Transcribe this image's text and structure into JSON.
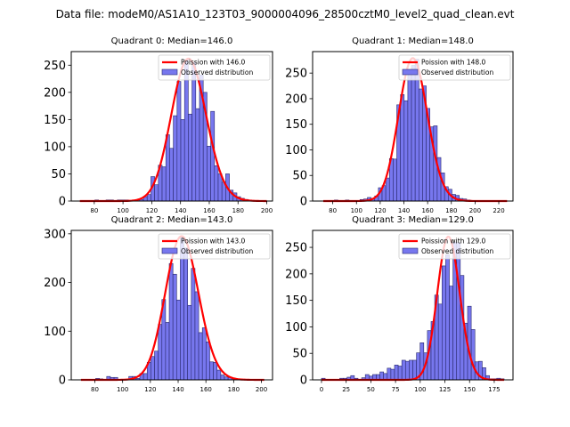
{
  "suptitle": "Data file: modeM0/AS1A10_123T03_9000004096_28500cztM0_level2_quad_clean.evt",
  "chart_data": [
    {
      "type": "bar",
      "title": "Quadrant 0: Median=146.0",
      "xlim": [
        64,
        204
      ],
      "ylim": [
        0,
        275
      ],
      "xticks": [
        80,
        100,
        120,
        140,
        160,
        180,
        200
      ],
      "yticks": [
        0,
        50,
        100,
        150,
        200,
        250
      ],
      "bin_width": 2.6,
      "bins": [
        [
          70,
          0
        ],
        [
          72.6,
          0
        ],
        [
          75.2,
          0
        ],
        [
          77.8,
          0
        ],
        [
          80.4,
          2
        ],
        [
          83,
          1
        ],
        [
          85.6,
          0
        ],
        [
          88.2,
          2
        ],
        [
          90.8,
          2
        ],
        [
          93.4,
          1
        ],
        [
          96,
          2
        ],
        [
          98.6,
          2
        ],
        [
          101.2,
          2
        ],
        [
          103.8,
          1
        ],
        [
          106.4,
          1
        ],
        [
          109,
          2
        ],
        [
          111.6,
          3
        ],
        [
          114.2,
          8
        ],
        [
          116.8,
          12
        ],
        [
          119.4,
          45
        ],
        [
          122,
          30
        ],
        [
          124.6,
          66
        ],
        [
          127.2,
          63
        ],
        [
          129.8,
          122
        ],
        [
          132.4,
          97
        ],
        [
          135,
          157
        ],
        [
          137.6,
          220
        ],
        [
          140.2,
          150
        ],
        [
          142.8,
          260
        ],
        [
          145.4,
          160
        ],
        [
          148,
          255
        ],
        [
          150.6,
          170
        ],
        [
          153.2,
          232
        ],
        [
          155.8,
          200
        ],
        [
          158.4,
          101
        ],
        [
          161,
          165
        ],
        [
          163.6,
          65
        ],
        [
          166.2,
          50
        ],
        [
          168.8,
          35
        ],
        [
          171.4,
          50
        ],
        [
          174,
          20
        ],
        [
          176.6,
          15
        ],
        [
          179.2,
          8
        ],
        [
          181.8,
          5
        ],
        [
          184.4,
          3
        ],
        [
          187,
          2
        ],
        [
          189.6,
          1
        ],
        [
          192.2,
          1
        ],
        [
          194.8,
          0
        ],
        [
          197.4,
          0
        ]
      ],
      "poisson_mean": 146.0,
      "poisson_peak": 262,
      "legend": [
        "Poission with 146.0",
        "Observed distribution"
      ],
      "legend_position": "upper-right"
    },
    {
      "type": "bar",
      "title": "Quadrant 1: Median=148.0",
      "xlim": [
        63,
        232
      ],
      "ylim": [
        0,
        292
      ],
      "xticks": [
        80,
        100,
        120,
        140,
        160,
        180,
        200,
        220
      ],
      "yticks": [
        0,
        50,
        100,
        150,
        200,
        250
      ],
      "bin_width": 3.1,
      "bins": [
        [
          72,
          0
        ],
        [
          75.1,
          1
        ],
        [
          78.2,
          0
        ],
        [
          81.3,
          2
        ],
        [
          84.4,
          1
        ],
        [
          87.5,
          0
        ],
        [
          90.6,
          2
        ],
        [
          93.7,
          1
        ],
        [
          96.8,
          0
        ],
        [
          99.9,
          1
        ],
        [
          103,
          3
        ],
        [
          106.1,
          4
        ],
        [
          109.2,
          7
        ],
        [
          112.3,
          5
        ],
        [
          115.4,
          10
        ],
        [
          118.5,
          26
        ],
        [
          121.6,
          30
        ],
        [
          124.7,
          45
        ],
        [
          127.8,
          83
        ],
        [
          130.9,
          82
        ],
        [
          134,
          188
        ],
        [
          137.1,
          208
        ],
        [
          140.2,
          196
        ],
        [
          143.3,
          248
        ],
        [
          146.4,
          265
        ],
        [
          149.5,
          277
        ],
        [
          152.6,
          219
        ],
        [
          155.7,
          225
        ],
        [
          158.8,
          181
        ],
        [
          161.9,
          145
        ],
        [
          165,
          147
        ],
        [
          168.1,
          85
        ],
        [
          171.2,
          55
        ],
        [
          174.3,
          28
        ],
        [
          177.4,
          23
        ],
        [
          180.5,
          13
        ],
        [
          183.6,
          11
        ],
        [
          186.7,
          5
        ],
        [
          189.8,
          4
        ],
        [
          192.9,
          2
        ],
        [
          196,
          1
        ],
        [
          199.1,
          1
        ],
        [
          202.2,
          0
        ],
        [
          205.3,
          0
        ],
        [
          208.4,
          0
        ],
        [
          211.5,
          0
        ],
        [
          214.6,
          0
        ],
        [
          217.7,
          0
        ],
        [
          220.8,
          1
        ],
        [
          223.9,
          0
        ]
      ],
      "poisson_mean": 148.0,
      "poisson_peak": 279,
      "legend": [
        "Poission with 148.0",
        "Observed distribution"
      ],
      "legend_position": "upper-right"
    },
    {
      "type": "bar",
      "title": "Quadrant 2: Median=143.0",
      "xlim": [
        63,
        208
      ],
      "ylim": [
        0,
        307
      ],
      "xticks": [
        80,
        100,
        120,
        140,
        160,
        180,
        200
      ],
      "yticks": [
        0,
        100,
        200,
        300
      ],
      "bin_width": 2.65,
      "bins": [
        [
          70,
          0
        ],
        [
          72.65,
          0
        ],
        [
          75.3,
          0
        ],
        [
          77.95,
          0
        ],
        [
          80.6,
          3
        ],
        [
          83.25,
          2
        ],
        [
          85.9,
          0
        ],
        [
          88.55,
          7
        ],
        [
          91.2,
          5
        ],
        [
          93.85,
          5
        ],
        [
          96.5,
          0
        ],
        [
          99.15,
          0
        ],
        [
          101.8,
          0
        ],
        [
          104.45,
          7
        ],
        [
          107.1,
          7
        ],
        [
          109.75,
          3
        ],
        [
          112.4,
          13
        ],
        [
          115.05,
          13
        ],
        [
          117.7,
          36
        ],
        [
          120.35,
          48
        ],
        [
          123,
          59
        ],
        [
          125.65,
          114
        ],
        [
          128.3,
          165
        ],
        [
          130.95,
          118
        ],
        [
          133.6,
          239
        ],
        [
          136.25,
          217
        ],
        [
          138.9,
          164
        ],
        [
          141.55,
          293
        ],
        [
          144.2,
          271
        ],
        [
          146.85,
          153
        ],
        [
          149.5,
          229
        ],
        [
          152.15,
          181
        ],
        [
          154.8,
          97
        ],
        [
          157.45,
          107
        ],
        [
          160.1,
          78
        ],
        [
          162.75,
          37
        ],
        [
          165.4,
          36
        ],
        [
          168.05,
          20
        ],
        [
          170.7,
          10
        ],
        [
          173.35,
          6
        ],
        [
          176,
          5
        ],
        [
          178.65,
          3
        ],
        [
          181.3,
          2
        ],
        [
          183.95,
          1
        ],
        [
          186.6,
          0
        ],
        [
          189.25,
          0
        ],
        [
          191.9,
          0
        ],
        [
          194.55,
          0
        ],
        [
          197.2,
          0
        ],
        [
          199.85,
          0
        ]
      ],
      "poisson_mean": 143.0,
      "poisson_peak": 295,
      "legend": [
        "Poission with 143.0",
        "Observed distribution"
      ],
      "legend_position": "upper-right"
    },
    {
      "type": "bar",
      "title": "Quadrant 3: Median=129.0",
      "xlim": [
        -9,
        194
      ],
      "ylim": [
        0,
        282
      ],
      "xticks": [
        0,
        25,
        50,
        75,
        100,
        125,
        150,
        175
      ],
      "yticks": [
        0,
        50,
        100,
        150,
        200,
        250
      ],
      "bin_width": 3.7,
      "bins": [
        [
          0,
          3
        ],
        [
          3.7,
          1
        ],
        [
          7.4,
          0
        ],
        [
          11.1,
          0
        ],
        [
          14.8,
          1
        ],
        [
          18.5,
          3
        ],
        [
          22.2,
          3
        ],
        [
          25.9,
          5
        ],
        [
          29.6,
          8
        ],
        [
          33.3,
          3
        ],
        [
          37,
          0
        ],
        [
          40.7,
          4
        ],
        [
          44.4,
          10
        ],
        [
          48.1,
          7
        ],
        [
          51.8,
          10
        ],
        [
          55.5,
          10
        ],
        [
          59.2,
          15
        ],
        [
          62.9,
          12
        ],
        [
          66.6,
          22
        ],
        [
          70.3,
          20
        ],
        [
          74,
          28
        ],
        [
          77.7,
          26
        ],
        [
          81.4,
          37
        ],
        [
          85.1,
          35
        ],
        [
          88.8,
          37
        ],
        [
          92.5,
          37
        ],
        [
          96.2,
          51
        ],
        [
          99.9,
          70
        ],
        [
          103.6,
          51
        ],
        [
          107.3,
          93
        ],
        [
          111,
          110
        ],
        [
          114.7,
          160
        ],
        [
          118.4,
          143
        ],
        [
          122.1,
          215
        ],
        [
          125.8,
          236
        ],
        [
          129.5,
          177
        ],
        [
          133.2,
          260
        ],
        [
          136.9,
          259
        ],
        [
          140.6,
          197
        ],
        [
          144.3,
          107
        ],
        [
          148,
          139
        ],
        [
          151.7,
          95
        ],
        [
          155.4,
          34
        ],
        [
          159.1,
          35
        ],
        [
          162.8,
          23
        ],
        [
          166.5,
          8
        ],
        [
          170.2,
          2
        ],
        [
          173.9,
          2
        ],
        [
          177.6,
          3
        ],
        [
          181.3,
          2
        ]
      ],
      "poisson_mean": 129.0,
      "poisson_peak": 270,
      "legend": [
        "Poission with 129.0",
        "Observed distribution"
      ],
      "legend_position": "upper-right"
    }
  ],
  "colors": {
    "bar_fill": "#7777ee",
    "bar_edge": "#2a2a6e",
    "poisson_line": "#ff0000"
  }
}
